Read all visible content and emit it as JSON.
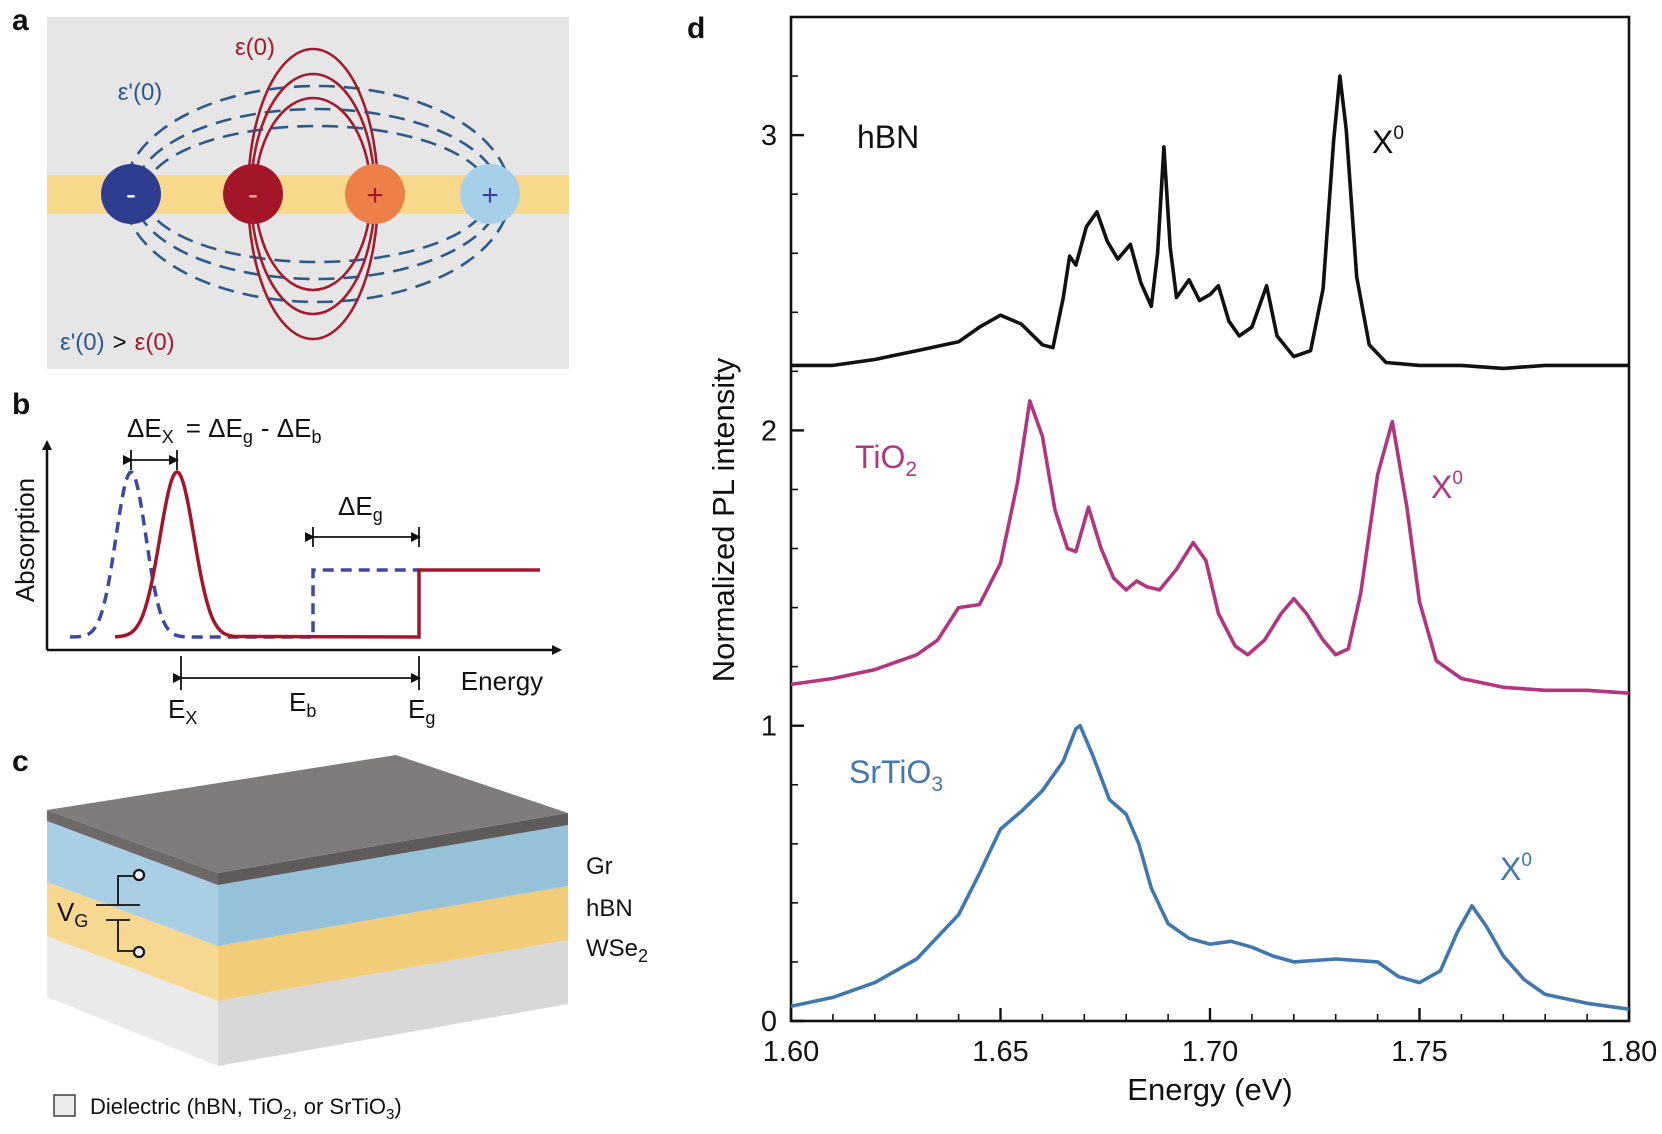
{
  "colors": {
    "blue_dark": "#2e3d8f",
    "red_dark": "#a3162a",
    "orange": "#ec8048",
    "light_blue": "#a6d0e9",
    "field_blue": "#2c5a8c",
    "field_red": "#a31b2f",
    "band_yellow": "#f8d98c",
    "panel_grey": "#e6e6e6",
    "hbn_black": "#111111",
    "tio2_magenta": "#b1357f",
    "srtio3_blue": "#4077ad",
    "gr_grey": "#7f7b7b",
    "hbn_layer": "#a8cfe3",
    "wse2_layer": "#f7d891",
    "dielectric": "#e5e5e5"
  },
  "panel_a": {
    "label": "a",
    "charges": [
      "-",
      "-",
      "+",
      "+"
    ],
    "eps_red": "ε(0)",
    "eps_blue": "ε'(0)",
    "compare_blue": "ε'(0)",
    "compare_op": ">",
    "compare_red": "ε(0)"
  },
  "panel_b": {
    "label": "b",
    "ylabel": "Absorption",
    "xlabel": "Energy",
    "eq_delta": "ΔE",
    "eq_x_sub": "X",
    "eq_equals": "= ΔE",
    "eq_g_sub": "g",
    "eq_minus": "- ΔE",
    "eq_b_sub": "b",
    "dEg": "ΔE",
    "dEg_sub": "g",
    "E": "E",
    "Ex_sub": "X",
    "Eb_sub": "b",
    "Eg_sub": "g"
  },
  "panel_c": {
    "label": "c",
    "vg": "V",
    "vg_sub": "G",
    "layer_gr": "Gr",
    "layer_hbn": "hBN",
    "layer_wse2": "WSe",
    "layer_wse2_sub": "2",
    "legend_p1": "Dielectric (hBN, TiO",
    "legend_s1": "2",
    "legend_p2": ", or SrTiO",
    "legend_s2": "3",
    "legend_p3": ")"
  },
  "panel_d": {
    "label": "d"
  },
  "chart_data": {
    "type": "line",
    "title": "",
    "xlabel": "Energy (eV)",
    "ylabel": "Normalized PL intensity",
    "xlim": [
      1.6,
      1.8
    ],
    "ylim": [
      0,
      3.4
    ],
    "x_ticks": [
      "1.60",
      "1.65",
      "1.70",
      "1.75",
      "1.80"
    ],
    "y_ticks": [
      "0",
      "1",
      "2",
      "3"
    ],
    "grid": false,
    "legend": "none",
    "series": [
      {
        "name": "hBN",
        "color": "#111111",
        "name_main": "hBN",
        "name_sub": "",
        "peak_text": "X",
        "peak_sup": "0",
        "points": [
          [
            1.6,
            2.22
          ],
          [
            1.61,
            2.22
          ],
          [
            1.62,
            2.24
          ],
          [
            1.63,
            2.27
          ],
          [
            1.64,
            2.3
          ],
          [
            1.645,
            2.35
          ],
          [
            1.65,
            2.39
          ],
          [
            1.655,
            2.36
          ],
          [
            1.66,
            2.29
          ],
          [
            1.6625,
            2.28
          ],
          [
            1.665,
            2.45
          ],
          [
            1.6665,
            2.59
          ],
          [
            1.668,
            2.56
          ],
          [
            1.6705,
            2.69
          ],
          [
            1.673,
            2.74
          ],
          [
            1.6755,
            2.64
          ],
          [
            1.678,
            2.58
          ],
          [
            1.681,
            2.63
          ],
          [
            1.6835,
            2.5
          ],
          [
            1.686,
            2.42
          ],
          [
            1.6875,
            2.6
          ],
          [
            1.689,
            2.96
          ],
          [
            1.6905,
            2.62
          ],
          [
            1.692,
            2.45
          ],
          [
            1.695,
            2.51
          ],
          [
            1.6975,
            2.44
          ],
          [
            1.7,
            2.46
          ],
          [
            1.702,
            2.49
          ],
          [
            1.7045,
            2.37
          ],
          [
            1.707,
            2.32
          ],
          [
            1.71,
            2.35
          ],
          [
            1.7135,
            2.49
          ],
          [
            1.716,
            2.32
          ],
          [
            1.72,
            2.25
          ],
          [
            1.724,
            2.27
          ],
          [
            1.727,
            2.48
          ],
          [
            1.7295,
            2.98
          ],
          [
            1.731,
            3.2
          ],
          [
            1.7325,
            3.02
          ],
          [
            1.735,
            2.52
          ],
          [
            1.738,
            2.29
          ],
          [
            1.742,
            2.23
          ],
          [
            1.75,
            2.22
          ],
          [
            1.76,
            2.22
          ],
          [
            1.77,
            2.21
          ],
          [
            1.78,
            2.22
          ],
          [
            1.79,
            2.22
          ],
          [
            1.8,
            2.22
          ]
        ]
      },
      {
        "name": "TiO2",
        "color": "#b1357f",
        "name_main": "TiO",
        "name_sub": "2",
        "peak_text": "X",
        "peak_sup": "0",
        "points": [
          [
            1.6,
            1.14
          ],
          [
            1.61,
            1.16
          ],
          [
            1.62,
            1.19
          ],
          [
            1.63,
            1.24
          ],
          [
            1.635,
            1.29
          ],
          [
            1.64,
            1.4
          ],
          [
            1.645,
            1.41
          ],
          [
            1.65,
            1.55
          ],
          [
            1.654,
            1.82
          ],
          [
            1.657,
            2.1
          ],
          [
            1.66,
            1.98
          ],
          [
            1.663,
            1.73
          ],
          [
            1.666,
            1.6
          ],
          [
            1.668,
            1.59
          ],
          [
            1.671,
            1.74
          ],
          [
            1.674,
            1.6
          ],
          [
            1.677,
            1.5
          ],
          [
            1.68,
            1.46
          ],
          [
            1.6825,
            1.49
          ],
          [
            1.685,
            1.47
          ],
          [
            1.688,
            1.46
          ],
          [
            1.692,
            1.53
          ],
          [
            1.696,
            1.62
          ],
          [
            1.699,
            1.56
          ],
          [
            1.702,
            1.38
          ],
          [
            1.706,
            1.27
          ],
          [
            1.709,
            1.24
          ],
          [
            1.713,
            1.29
          ],
          [
            1.717,
            1.38
          ],
          [
            1.72,
            1.43
          ],
          [
            1.723,
            1.38
          ],
          [
            1.727,
            1.29
          ],
          [
            1.73,
            1.24
          ],
          [
            1.733,
            1.26
          ],
          [
            1.736,
            1.45
          ],
          [
            1.74,
            1.85
          ],
          [
            1.7435,
            2.03
          ],
          [
            1.747,
            1.74
          ],
          [
            1.75,
            1.42
          ],
          [
            1.754,
            1.22
          ],
          [
            1.76,
            1.16
          ],
          [
            1.77,
            1.13
          ],
          [
            1.78,
            1.12
          ],
          [
            1.79,
            1.12
          ],
          [
            1.8,
            1.11
          ]
        ]
      },
      {
        "name": "SrTiO3",
        "color": "#4077ad",
        "name_main": "SrTiO",
        "name_sub": "3",
        "peak_text": "X",
        "peak_sup": "0",
        "points": [
          [
            1.6,
            0.05
          ],
          [
            1.61,
            0.08
          ],
          [
            1.62,
            0.13
          ],
          [
            1.63,
            0.21
          ],
          [
            1.64,
            0.36
          ],
          [
            1.645,
            0.5
          ],
          [
            1.65,
            0.65
          ],
          [
            1.655,
            0.71
          ],
          [
            1.66,
            0.78
          ],
          [
            1.665,
            0.88
          ],
          [
            1.668,
            0.99
          ],
          [
            1.669,
            1.0
          ],
          [
            1.672,
            0.9
          ],
          [
            1.676,
            0.75
          ],
          [
            1.68,
            0.7
          ],
          [
            1.683,
            0.6
          ],
          [
            1.686,
            0.45
          ],
          [
            1.69,
            0.33
          ],
          [
            1.695,
            0.28
          ],
          [
            1.7,
            0.26
          ],
          [
            1.705,
            0.27
          ],
          [
            1.71,
            0.25
          ],
          [
            1.715,
            0.22
          ],
          [
            1.72,
            0.2
          ],
          [
            1.73,
            0.21
          ],
          [
            1.74,
            0.2
          ],
          [
            1.745,
            0.15
          ],
          [
            1.75,
            0.13
          ],
          [
            1.755,
            0.17
          ],
          [
            1.759,
            0.3
          ],
          [
            1.7625,
            0.39
          ],
          [
            1.766,
            0.32
          ],
          [
            1.77,
            0.22
          ],
          [
            1.775,
            0.14
          ],
          [
            1.78,
            0.09
          ],
          [
            1.79,
            0.06
          ],
          [
            1.8,
            0.04
          ]
        ]
      }
    ]
  }
}
